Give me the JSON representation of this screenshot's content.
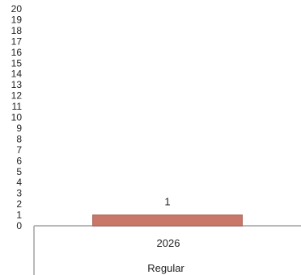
{
  "chart_data": {
    "type": "bar",
    "categories": [
      "2026"
    ],
    "group_label": "Regular",
    "values": [
      1
    ],
    "data_labels": [
      "1"
    ],
    "ylim": [
      0,
      20
    ],
    "y_ticks": [
      0,
      1,
      2,
      3,
      4,
      5,
      6,
      7,
      8,
      9,
      10,
      11,
      12,
      13,
      14,
      15,
      16,
      17,
      18,
      19,
      20
    ],
    "grid": false,
    "legend": "none",
    "colors": {
      "bar": "#c97769",
      "bar_border": "#a85f53",
      "axis": "#b9b9b9"
    }
  }
}
